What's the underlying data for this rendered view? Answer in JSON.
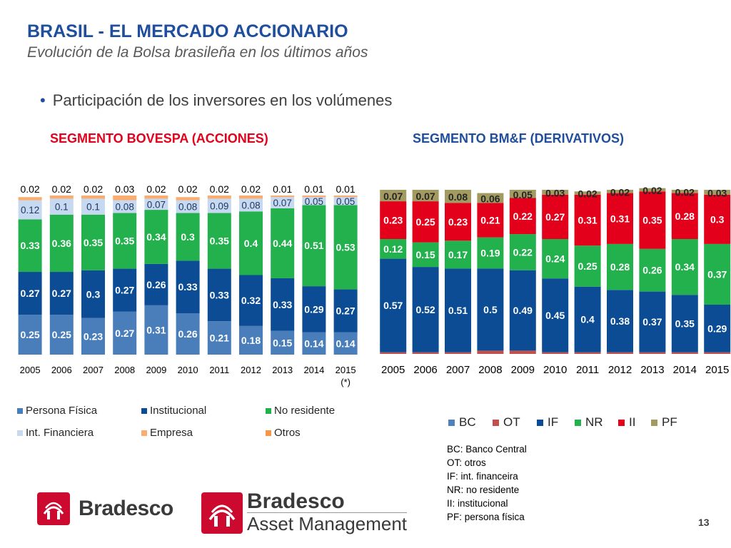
{
  "header": {
    "title": "BRASIL - EL MERCADO ACCIONARIO",
    "subtitle": "Evolución de la Bolsa brasileña en los últimos años",
    "bullet": "Participación de los inversores en los volúmenes"
  },
  "segments": {
    "left_title": "SEGMENTO BOVESPA (ACCIONES)",
    "right_title": "SEGMENTO BM&F (DERIVATIVOS)"
  },
  "chart_data": [
    {
      "type": "bar",
      "stacked": true,
      "categories": [
        "2005",
        "2006",
        "2007",
        "2008",
        "2009",
        "2010",
        "2011",
        "2012",
        "2013",
        "2014",
        "2015\n(*)"
      ],
      "series": [
        {
          "name": "Persona Física",
          "color": "#4a7ebb",
          "values": [
            0.25,
            0.25,
            0.23,
            0.27,
            0.31,
            0.26,
            0.21,
            0.18,
            0.15,
            0.14,
            0.14
          ]
        },
        {
          "name": "Institucional",
          "color": "#0b4c94",
          "values": [
            0.27,
            0.27,
            0.3,
            0.27,
            0.26,
            0.33,
            0.33,
            0.32,
            0.33,
            0.29,
            0.27
          ]
        },
        {
          "name": "No residente",
          "color": "#22b14c",
          "values": [
            0.33,
            0.36,
            0.35,
            0.35,
            0.34,
            0.3,
            0.35,
            0.4,
            0.44,
            0.51,
            0.53
          ]
        },
        {
          "name": "Int. Financiera",
          "color": "#c6d9f1",
          "values": [
            0.12,
            0.1,
            0.1,
            0.08,
            0.07,
            0.08,
            0.09,
            0.08,
            0.07,
            0.05,
            0.05
          ]
        },
        {
          "name": "Empresa",
          "color": "#f9ad71",
          "values": [
            0.02,
            0.02,
            0.02,
            0.03,
            0.02,
            0.02,
            0.02,
            0.02,
            0.01,
            0.01,
            0.01
          ]
        },
        {
          "name": "Otros",
          "color": "#f79646",
          "values": [
            0,
            0,
            0,
            0,
            0,
            0,
            0,
            0,
            0,
            0,
            0
          ]
        }
      ],
      "top_labels": [
        "0.02",
        "0.02",
        "0.02",
        "0.03",
        "0.02",
        "0.02",
        "0.02",
        "0.02",
        "0.01",
        "0.01",
        "0.01"
      ]
    },
    {
      "type": "bar",
      "stacked": true,
      "categories": [
        "2005",
        "2006",
        "2007",
        "2008",
        "2009",
        "2010",
        "2011",
        "2012",
        "2013",
        "2014",
        "2015"
      ],
      "series": [
        {
          "name": "BC",
          "color": "#4f81bd",
          "values": [
            0,
            0,
            0,
            0,
            0,
            0,
            0,
            0,
            0,
            0,
            0
          ]
        },
        {
          "name": "OT",
          "color": "#c0504d",
          "values": [
            0.01,
            0.01,
            0.01,
            0.02,
            0.02,
            0.01,
            0.01,
            0.01,
            0.01,
            0.01,
            0.01
          ]
        },
        {
          "name": "IF",
          "color": "#0b4c94",
          "values": [
            0.57,
            0.52,
            0.51,
            0.5,
            0.49,
            0.45,
            0.4,
            0.38,
            0.37,
            0.35,
            0.29
          ]
        },
        {
          "name": "NR",
          "color": "#22b14c",
          "values": [
            0.12,
            0.15,
            0.17,
            0.19,
            0.22,
            0.24,
            0.25,
            0.28,
            0.26,
            0.34,
            0.37
          ]
        },
        {
          "name": "II",
          "color": "#e3001b",
          "values": [
            0.23,
            0.25,
            0.23,
            0.21,
            0.22,
            0.27,
            0.31,
            0.31,
            0.35,
            0.28,
            0.3
          ]
        },
        {
          "name": "PF",
          "color": "#a39a62",
          "values": [
            0.07,
            0.07,
            0.08,
            0.06,
            0.05,
            0.03,
            0.02,
            0.02,
            0.02,
            0.02,
            0.03
          ]
        }
      ]
    }
  ],
  "glossary": [
    "BC:  Banco Central",
    "OT: otros",
    "IF: int. financeira",
    "NR: no  residente",
    "II: institucional",
    "PF: persona física"
  ],
  "logos": {
    "logo1": "Bradesco",
    "logo2_line1": "Bradesco",
    "logo2_line2": "Asset Management"
  },
  "page_number": "13"
}
